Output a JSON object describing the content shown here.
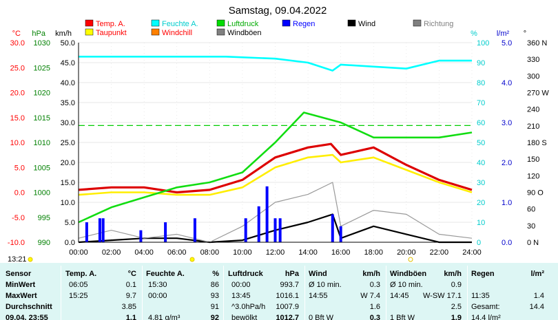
{
  "chart_data": {
    "type": "line",
    "title": "Samstag, 09.04.2022",
    "x_ticks": [
      "00:00",
      "02:00",
      "04:00",
      "06:00",
      "08:00",
      "10:00",
      "12:00",
      "14:00",
      "16:00",
      "18:00",
      "20:00",
      "22:00",
      "24:00"
    ],
    "axes": {
      "temp": {
        "unit": "°C",
        "color": "#ff0000",
        "ticks": [
          "30.0",
          "25.0",
          "20.0",
          "15.0",
          "10.0",
          "5.0",
          "0.0",
          "-5.0",
          "-10.0"
        ]
      },
      "pressure": {
        "unit": "hPa",
        "color": "#008000",
        "ticks": [
          "1030",
          "1025",
          "1020",
          "1015",
          "1010",
          "1005",
          "1000",
          "995",
          "990"
        ]
      },
      "wind": {
        "unit": "km/h",
        "color": "#000000",
        "ticks": [
          "50.0",
          "45.0",
          "40.0",
          "35.0",
          "30.0",
          "25.0",
          "20.0",
          "15.0",
          "10.0",
          "5.0",
          "0.0"
        ]
      },
      "humidity": {
        "unit": "%",
        "color": "#00cccc",
        "ticks": [
          "100",
          "90",
          "80",
          "70",
          "60",
          "50",
          "40",
          "30",
          "20",
          "10",
          "0"
        ]
      },
      "rain": {
        "unit": "l/m²",
        "color": "#0000cc",
        "ticks": [
          "5.0",
          "4.0",
          "3.0",
          "2.0",
          "1.0",
          "0.0"
        ]
      },
      "direction": {
        "unit": "°",
        "color": "#808080",
        "ticks": [
          "360 N",
          "330",
          "300",
          "270 W",
          "240",
          "210",
          "180 S",
          "150",
          "120",
          "90 O",
          "60",
          "30",
          "0 N"
        ]
      }
    },
    "legend": [
      {
        "name": "Temp. A.",
        "color": "#ff0000"
      },
      {
        "name": "Feuchte A.",
        "color": "#00ffff"
      },
      {
        "name": "Luftdruck",
        "color": "#00dd00"
      },
      {
        "name": "Regen",
        "color": "#0000ff"
      },
      {
        "name": "Wind",
        "color": "#000000"
      },
      {
        "name": "Richtung",
        "color": "#808080"
      },
      {
        "name": "Taupunkt",
        "color": "#ffff00"
      },
      {
        "name": "Windchill",
        "color": "#ff8000"
      },
      {
        "name": "Windböen",
        "color": "#808080"
      }
    ],
    "series": [
      {
        "name": "Temp. A.",
        "axis": "temp",
        "x": [
          0,
          2,
          4,
          6,
          8,
          10,
          12,
          14,
          15.4,
          16,
          18,
          20,
          22,
          24
        ],
        "values": [
          0.5,
          1.0,
          1.0,
          0.0,
          0.5,
          2.5,
          7.0,
          9.0,
          9.7,
          7.5,
          9.0,
          5.5,
          2.5,
          0.5
        ]
      },
      {
        "name": "Taupunkt",
        "axis": "temp",
        "x": [
          0,
          2,
          4,
          6,
          8,
          10,
          12,
          14,
          15.5,
          16,
          18,
          20,
          22,
          24
        ],
        "values": [
          -0.5,
          0.0,
          0.0,
          -0.5,
          -0.5,
          1.0,
          5.0,
          7.0,
          7.5,
          6.0,
          7.0,
          4.5,
          2.0,
          0.0
        ]
      },
      {
        "name": "Luftdruck",
        "axis": "pressure",
        "x": [
          0,
          2,
          4,
          6,
          8,
          10,
          12,
          13.75,
          16,
          18,
          20,
          22,
          24
        ],
        "values": [
          994,
          997,
          999,
          1001,
          1002,
          1004,
          1010,
          1016,
          1014,
          1011,
          1011,
          1011,
          1012
        ]
      },
      {
        "name": "Feuchte A.",
        "axis": "humidity",
        "x": [
          0,
          9,
          12,
          14,
          15.5,
          16,
          18,
          20,
          22,
          24
        ],
        "values": [
          93,
          93,
          92,
          90,
          86,
          89,
          88,
          87,
          91,
          91
        ]
      },
      {
        "name": "Wind",
        "axis": "wind",
        "x": [
          0,
          2,
          4,
          6,
          8,
          10,
          12,
          14,
          15.5,
          16,
          18,
          20,
          22,
          24
        ],
        "values": [
          0,
          0.5,
          1,
          1,
          0,
          0.5,
          3,
          5,
          7,
          1,
          4,
          2,
          0,
          0
        ]
      },
      {
        "name": "Windböen",
        "axis": "wind",
        "x": [
          0,
          2,
          4,
          6,
          8,
          10,
          12,
          14,
          15.5,
          16,
          18,
          20,
          22,
          24
        ],
        "values": [
          1,
          3,
          1,
          2,
          0,
          4,
          10,
          12,
          15,
          4,
          8,
          7,
          2,
          1
        ]
      },
      {
        "name": "Regen",
        "axis": "rain",
        "x": [
          0.5,
          1.3,
          1.5,
          3.8,
          5.3,
          7.1,
          10.2,
          11.0,
          11.5,
          12.0,
          12.3,
          15.5,
          16.0
        ],
        "values": [
          0.5,
          0.6,
          0.6,
          0.3,
          0.5,
          0.6,
          0.6,
          0.9,
          1.4,
          0.6,
          0.6,
          0.7,
          0.4
        ]
      }
    ],
    "reference_line": {
      "axis": "temp",
      "value": 13.4,
      "color": "#00cc00",
      "style": "dashed"
    }
  },
  "footer": {
    "time": "13:21"
  },
  "summary": {
    "headers": {
      "sensor": "Sensor",
      "temp": "Temp. A.",
      "temp_unit": "°C",
      "feuchte": "Feuchte A.",
      "feuchte_unit": "%",
      "druck": "Luftdruck",
      "druck_unit": "hPa",
      "wind": "Wind",
      "wind_unit": "km/h",
      "boen": "Windböen",
      "boen_unit": "km/h",
      "regen": "Regen",
      "regen_unit": "l/m²"
    },
    "rows": [
      {
        "label": "MinWert",
        "temp_time": "06:05",
        "temp_val": "0.1",
        "feuchte_time": "15:30",
        "feuchte_val": "86",
        "druck_time": "00:00",
        "druck_val": "993.7",
        "wind_time": "Ø 10 min.",
        "wind_val": "0.3",
        "boen_time": "Ø 10 min.",
        "boen_val": "0.9",
        "regen_time": "",
        "regen_val": ""
      },
      {
        "label": "MaxWert",
        "temp_time": "15:25",
        "temp_val": "9.7",
        "feuchte_time": "00:00",
        "feuchte_val": "93",
        "druck_time": "13:45",
        "druck_val": "1016.1",
        "wind_time": "14:55",
        "wind_val": "W 7.4",
        "boen_time": "14:45",
        "boen_val": "W-SW 17.1",
        "regen_time": "11:35",
        "regen_val": "1.4"
      },
      {
        "label": "Durchschnitt",
        "temp_time": "",
        "temp_val": "3.85",
        "feuchte_time": "",
        "feuchte_val": "91",
        "druck_time": "^3.0hPa/h",
        "druck_val": "1007.9",
        "wind_time": "",
        "wind_val": "1.6",
        "boen_time": "",
        "boen_val": "2.5",
        "regen_time": "Gesamt:",
        "regen_val": "14.4"
      },
      {
        "label": "09.04. 23:55",
        "temp_time": "",
        "temp_val": "1.1",
        "feuchte_time": "4.81 g/m³",
        "feuchte_val": "92",
        "druck_time": "bewölkt",
        "druck_val": "1012.7",
        "wind_time": "0 Bft W",
        "wind_val": "0.3",
        "boen_time": "1 Bft W",
        "boen_val": "1.9",
        "regen_time": "14.4 l/m²",
        "regen_val": ""
      }
    ]
  }
}
